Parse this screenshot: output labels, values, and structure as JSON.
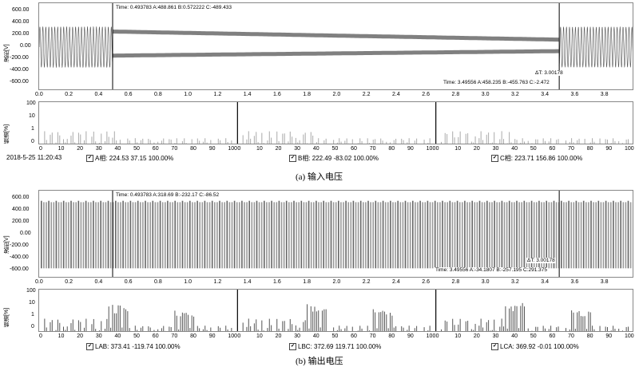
{
  "figure_a": {
    "wave": {
      "ylabel": "波形[V]",
      "yticks": [
        "600.00",
        "400.00",
        "200.00",
        "0.00",
        "-200.00",
        "-400.00",
        "-600.00"
      ],
      "xticks": [
        "0.0",
        "0.2",
        "0.4",
        "0.6",
        "0.8",
        "1.0",
        "1.2",
        "1.4",
        "1.6",
        "1.8",
        "2.0",
        "2.2",
        "2.4",
        "2.6",
        "2.8",
        "3.0",
        "3.2",
        "3.4",
        "3.6",
        "3.8"
      ],
      "cursor1": "Time: 0.493783 A:488.861 B:0.572222 C:-489.433",
      "delta": "ΔT: 3.00178",
      "cursor2": "Time: 3.49556 A:458.235 B:-455.763 C:-2.472"
    },
    "spectrum": {
      "ylabel": "频谱[%]",
      "yticks": [
        "100",
        "10",
        "1",
        "0"
      ],
      "xticks": [
        "0",
        "10",
        "20",
        "30",
        "40",
        "50",
        "60",
        "70",
        "80",
        "90",
        "100"
      ]
    },
    "status": {
      "timestamp": "2018-5-25 11:20:43",
      "ch1": "A相: 224.53  37.15  100.00%",
      "ch2": "B相: 222.49  -83.02  100.00%",
      "ch3": "C相: 223.71  156.86  100.00%"
    },
    "caption": "(a)  输入电压"
  },
  "figure_b": {
    "wave": {
      "ylabel": "波形[V]",
      "yticks": [
        "600.00",
        "400.00",
        "200.00",
        "0.00",
        "-200.00",
        "-400.00",
        "-600.00"
      ],
      "xticks": [
        "0.0",
        "0.2",
        "0.4",
        "0.6",
        "0.8",
        "1.0",
        "1.2",
        "1.4",
        "1.6",
        "1.8",
        "2.0",
        "2.2",
        "2.4",
        "2.6",
        "2.8",
        "3.0",
        "3.2",
        "3.4",
        "3.6",
        "3.8"
      ],
      "cursor1": "Time: 0.493783 A:318.69 B:-232.17 C:-86.52",
      "delta": "ΔT: 3.00178",
      "cursor2": "Time: 3.49556 A:-34.1807 B:-257.195 C:291.375"
    },
    "spectrum": {
      "ylabel": "频谱[%]",
      "yticks": [
        "100",
        "10",
        "1",
        "0"
      ],
      "xticks": [
        "0",
        "10",
        "20",
        "30",
        "40",
        "50",
        "60",
        "70",
        "80",
        "90",
        "100"
      ]
    },
    "status": {
      "ch1": "LAB: 373.41  -119.74  100.00%",
      "ch2": "LBC: 372.69  119.71  100.00%",
      "ch3": "LCA: 369.92  -0.01  100.00%"
    },
    "caption": "(b)  输出电压"
  },
  "check_mark": "✔",
  "colors": {
    "trace": "#555555",
    "light": "#aaaaaa",
    "cursor": "#000000",
    "frame": "#888888"
  }
}
